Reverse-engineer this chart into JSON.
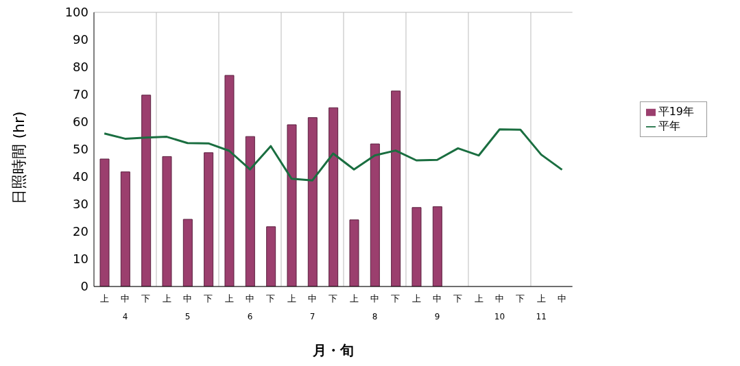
{
  "chart_data": {
    "type": "bar",
    "xlabel": "月・旬",
    "ylabel": "日照時間 (hr)",
    "categories": [
      "上",
      "中\n4",
      "下",
      "上",
      "中\n5",
      "下",
      "上",
      "中\n6",
      "下",
      "上",
      "中\n7",
      "下",
      "上",
      "中\n8",
      "下",
      "上",
      "中\n9",
      "下",
      "上",
      "中\n10",
      "下",
      "上\n11",
      "中"
    ],
    "series": [
      {
        "name": "平19年",
        "color": "#9b3f6e",
        "values": [
          46.5,
          41.8,
          69.8,
          47.4,
          24.5,
          48.8,
          77,
          54.7,
          21.8,
          59,
          61.6,
          65.2,
          24.3,
          52,
          71.3,
          28.8,
          29.1,
          null,
          null,
          null,
          null,
          null,
          null
        ]
      },
      {
        "name": "平年",
        "type": "line",
        "color": "#1a6e40",
        "values": [
          55.8,
          53.9,
          54.3,
          54.6,
          52.3,
          52.2,
          49.5,
          42.7,
          51.2,
          39.3,
          38.7,
          48.5,
          42.7,
          47.8,
          49.6,
          46,
          46.2,
          50.4,
          47.8,
          57.3,
          57.2,
          48.1,
          42.6
        ]
      }
    ],
    "ylim": [
      0,
      100
    ],
    "yticks": [
      0,
      10,
      20,
      30,
      40,
      50,
      60,
      70,
      80,
      90,
      100
    ],
    "grid": true,
    "legend": "right",
    "marker": "none"
  }
}
